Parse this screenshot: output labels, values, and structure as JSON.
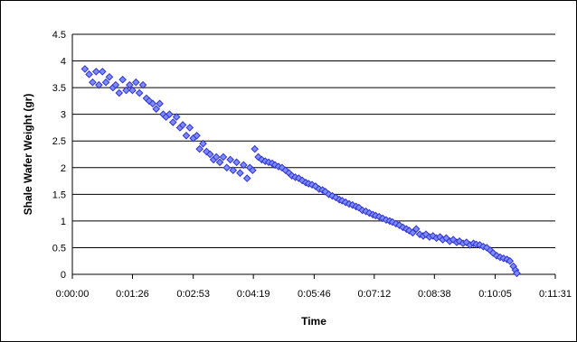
{
  "chart_data": {
    "type": "scatter",
    "title": "",
    "xlabel": "Time",
    "ylabel": "Shale Wafer Weight (gr)",
    "xlim": [
      "0:00:00",
      "0:11:31"
    ],
    "ylim": [
      0,
      4.5
    ],
    "grid": true,
    "legend": "none",
    "x_ticks": [
      "0:00:00",
      "0:01:26",
      "0:02:53",
      "0:04:19",
      "0:05:46",
      "0:07:12",
      "0:08:38",
      "0:10:05",
      "0:11:31"
    ],
    "y_ticks": [
      "0",
      "0.5",
      "1",
      "1.5",
      "2",
      "2.5",
      "3",
      "3.5",
      "4",
      "4.5"
    ],
    "marker_color": "#3333cc",
    "marker_fill": "#7a8cff",
    "series": [
      {
        "x": [
          "0:00:18",
          "0:00:24",
          "0:00:29",
          "0:00:34",
          "0:00:38",
          "0:00:43",
          "0:00:48",
          "0:00:53",
          "0:00:58",
          "0:01:02",
          "0:01:07",
          "0:01:12",
          "0:01:17",
          "0:01:22",
          "0:01:26",
          "0:01:31",
          "0:01:36",
          "0:01:41",
          "0:01:46",
          "0:01:50",
          "0:01:55",
          "0:02:00",
          "0:02:05",
          "0:02:10",
          "0:02:14",
          "0:02:19",
          "0:02:24",
          "0:02:29",
          "0:02:34",
          "0:02:38",
          "0:02:43",
          "0:02:48",
          "0:02:53",
          "0:02:58",
          "0:03:02",
          "0:03:07",
          "0:03:12",
          "0:03:17",
          "0:03:22",
          "0:03:26",
          "0:03:31",
          "0:03:36",
          "0:03:41",
          "0:03:46",
          "0:03:50",
          "0:03:55",
          "0:04:00",
          "0:04:05",
          "0:04:10",
          "0:04:14",
          "0:04:18",
          "0:04:21",
          "0:04:26",
          "0:04:31",
          "0:04:36",
          "0:04:41",
          "0:04:46",
          "0:04:50",
          "0:04:55",
          "0:05:00",
          "0:05:05",
          "0:05:10",
          "0:05:14",
          "0:05:19",
          "0:05:24",
          "0:05:29",
          "0:05:34",
          "0:05:38",
          "0:05:43",
          "0:05:48",
          "0:05:53",
          "0:05:58",
          "0:06:02",
          "0:06:07",
          "0:06:12",
          "0:06:17",
          "0:06:22",
          "0:06:26",
          "0:06:31",
          "0:06:36",
          "0:06:41",
          "0:06:46",
          "0:06:50",
          "0:06:55",
          "0:07:00",
          "0:07:05",
          "0:07:10",
          "0:07:14",
          "0:07:19",
          "0:07:24",
          "0:07:29",
          "0:07:34",
          "0:07:38",
          "0:07:43",
          "0:07:48",
          "0:07:53",
          "0:07:58",
          "0:08:02",
          "0:08:07",
          "0:08:12",
          "0:08:17",
          "0:08:22",
          "0:08:26",
          "0:08:31",
          "0:08:36",
          "0:08:41",
          "0:08:46",
          "0:08:50",
          "0:08:55",
          "0:09:00",
          "0:09:05",
          "0:09:10",
          "0:09:14",
          "0:09:19",
          "0:09:24",
          "0:09:29",
          "0:09:34",
          "0:09:38",
          "0:09:43",
          "0:09:48",
          "0:09:53",
          "0:09:58",
          "0:10:02",
          "0:10:07",
          "0:10:12",
          "0:10:17",
          "0:10:22",
          "0:10:26",
          "0:10:31",
          "0:10:34",
          "0:10:36"
        ],
        "y": [
          3.85,
          3.75,
          3.6,
          3.8,
          3.55,
          3.8,
          3.6,
          3.7,
          3.5,
          3.55,
          3.4,
          3.65,
          3.45,
          3.55,
          3.45,
          3.6,
          3.4,
          3.55,
          3.3,
          3.25,
          3.2,
          3.1,
          3.2,
          3.0,
          2.95,
          3.0,
          2.85,
          2.95,
          2.75,
          2.8,
          2.6,
          2.75,
          2.55,
          2.6,
          2.35,
          2.45,
          2.3,
          2.25,
          2.15,
          2.2,
          2.1,
          2.2,
          2.0,
          2.15,
          1.95,
          2.1,
          1.9,
          2.05,
          1.8,
          2.0,
          1.95,
          2.35,
          2.2,
          2.15,
          2.12,
          2.1,
          2.08,
          2.05,
          2.02,
          2.0,
          1.95,
          1.9,
          1.85,
          1.82,
          1.8,
          1.76,
          1.72,
          1.7,
          1.68,
          1.65,
          1.6,
          1.58,
          1.55,
          1.5,
          1.47,
          1.44,
          1.4,
          1.38,
          1.35,
          1.32,
          1.3,
          1.27,
          1.25,
          1.2,
          1.18,
          1.15,
          1.12,
          1.1,
          1.08,
          1.05,
          1.02,
          1.0,
          0.98,
          0.95,
          0.92,
          0.88,
          0.85,
          0.82,
          0.78,
          0.85,
          0.75,
          0.72,
          0.75,
          0.7,
          0.72,
          0.68,
          0.7,
          0.65,
          0.68,
          0.62,
          0.65,
          0.6,
          0.62,
          0.58,
          0.6,
          0.55,
          0.58,
          0.56,
          0.55,
          0.52,
          0.5,
          0.45,
          0.4,
          0.35,
          0.32,
          0.3,
          0.28,
          0.25,
          0.15,
          0.08,
          0.02
        ]
      }
    ]
  }
}
